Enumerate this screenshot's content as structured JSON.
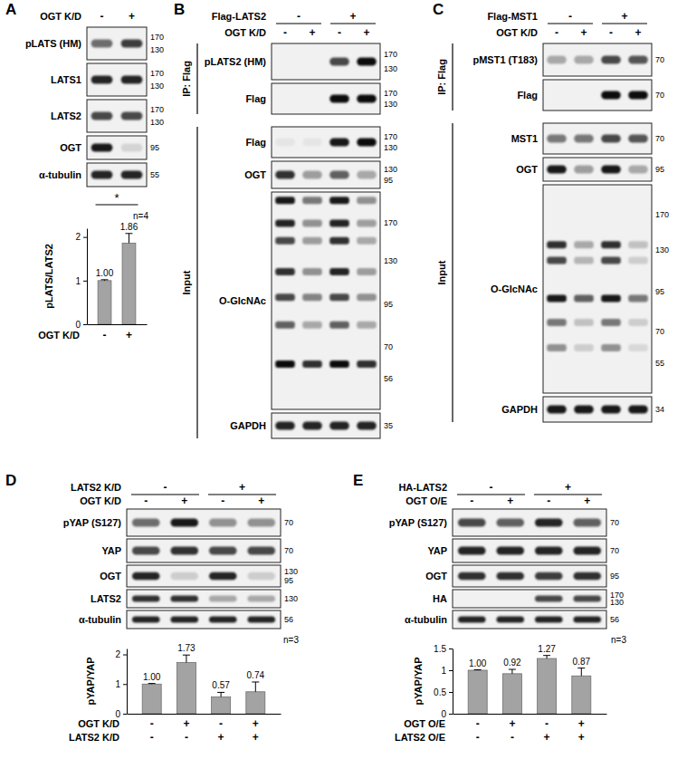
{
  "chart_data": [
    {
      "type": "bar",
      "categories": [
        "-",
        "+"
      ],
      "x_label": "OGT K/D",
      "values": [
        1,
        1.86
      ],
      "value_labels": [
        "1.00",
        "1.86"
      ],
      "errors": [
        0.02,
        0.22
      ],
      "y_label": "pLATS/LATS2",
      "ylim": [
        0,
        2.2
      ],
      "yticks": [
        0,
        1,
        2
      ],
      "color": "#a3a3a3",
      "data_labels": true,
      "significance": "*",
      "n_label": "n=4"
    },
    {
      "type": "bar",
      "categories": [
        "-",
        "+",
        "-",
        "+"
      ],
      "x_label": "OGT K/D",
      "categories_2": [
        "-",
        "-",
        "+",
        "+"
      ],
      "x_label_2": "LATS2 K/D",
      "values": [
        1,
        1.73,
        0.57,
        0.74
      ],
      "value_labels": [
        "1.00",
        "1.73",
        "0.57",
        "0.74"
      ],
      "errors": [
        0.02,
        0.25,
        0.15,
        0.33
      ],
      "y_label": "pYAP/YAP",
      "ylim": [
        0,
        2.2
      ],
      "yticks": [
        0,
        1,
        2
      ],
      "color": "#a3a3a3",
      "data_labels": true,
      "n_label": "n=3"
    },
    {
      "type": "bar",
      "categories": [
        "-",
        "+",
        "-",
        "+"
      ],
      "x_label": "OGT O/E",
      "categories_2": [
        "-",
        "-",
        "+",
        "+"
      ],
      "x_label_2": "LATS2 O/E",
      "values": [
        1,
        0.92,
        1.27,
        0.87
      ],
      "value_labels": [
        "1.00",
        "0.92",
        "1.27",
        "0.87"
      ],
      "errors": [
        0.01,
        0.1,
        0.07,
        0.18
      ],
      "y_label": "pYAP/YAP",
      "ylim": [
        0,
        1.5
      ],
      "yticks": [
        0,
        0.5,
        1,
        1.5
      ],
      "color": "#a3a3a3",
      "data_labels": true,
      "n_label": "n=3"
    }
  ],
  "blots": [
    {
      "panel": "A",
      "headers": [
        {
          "label": "OGT K/D",
          "signs": [
            "-",
            "+"
          ]
        }
      ],
      "rows": [
        {
          "name": "pLATS (HM)",
          "markers": [
            170,
            130
          ],
          "intensity": [
            0.55,
            0.75
          ]
        },
        {
          "name": "LATS1",
          "markers": [
            170,
            130
          ],
          "intensity": [
            0.85,
            0.85
          ]
        },
        {
          "name": "LATS2",
          "markers": [
            170,
            130
          ],
          "intensity": [
            0.7,
            0.7
          ]
        },
        {
          "name": "OGT",
          "markers": [
            95
          ],
          "intensity": [
            0.9,
            0.12
          ]
        },
        {
          "name": "α-tubulin",
          "markers": [
            55
          ],
          "intensity": [
            0.85,
            0.85
          ]
        }
      ]
    },
    {
      "panel": "B",
      "headers": [
        {
          "label": "Flag-LATS2",
          "signs": [
            "-",
            "+"
          ]
        },
        {
          "label": "OGT K/D",
          "signs": [
            "-",
            "+",
            "-",
            "+"
          ]
        }
      ],
      "groups": [
        {
          "label": "IP: Flag",
          "rows": [
            {
              "name": "pLATS2 (HM)",
              "markers": [
                170,
                130
              ],
              "intensity": [
                0,
                0,
                0.7,
                0.95
              ]
            },
            {
              "name": "Flag",
              "markers": [
                170,
                130
              ],
              "intensity": [
                0,
                0,
                0.95,
                0.95
              ]
            }
          ]
        },
        {
          "label": "Input",
          "rows": [
            {
              "name": "Flag",
              "markers": [
                170,
                130
              ],
              "intensity": [
                0.05,
                0.05,
                0.9,
                0.95
              ]
            },
            {
              "name": "OGT",
              "markers": [
                130,
                95
              ],
              "intensity": [
                0.8,
                0.35,
                0.6,
                0.3
              ]
            },
            {
              "name": "O-GlcNAc",
              "markers": [
                170,
                130,
                95,
                70,
                56
              ],
              "bands": [
                {
                  "kda": 200,
                  "intensity": [
                    0.9,
                    0.5,
                    0.9,
                    0.4
                  ]
                },
                {
                  "kda": 170,
                  "intensity": [
                    0.85,
                    0.4,
                    0.85,
                    0.35
                  ]
                },
                {
                  "kda": 150,
                  "intensity": [
                    0.7,
                    0.35,
                    0.8,
                    0.3
                  ]
                },
                {
                  "kda": 120,
                  "intensity": [
                    0.8,
                    0.4,
                    0.85,
                    0.35
                  ]
                },
                {
                  "kda": 100,
                  "intensity": [
                    0.7,
                    0.45,
                    0.7,
                    0.4
                  ]
                },
                {
                  "kda": 82,
                  "intensity": [
                    0.6,
                    0.3,
                    0.6,
                    0.3
                  ]
                },
                {
                  "kda": 62,
                  "intensity": [
                    0.95,
                    0.8,
                    0.95,
                    0.8
                  ]
                }
              ]
            },
            {
              "name": "GAPDH",
              "markers": [
                35
              ],
              "intensity": [
                0.85,
                0.85,
                0.85,
                0.85
              ]
            }
          ]
        }
      ]
    },
    {
      "panel": "C",
      "headers": [
        {
          "label": "Flag-MST1",
          "signs": [
            "-",
            "+"
          ]
        },
        {
          "label": "OGT K/D",
          "signs": [
            "-",
            "+",
            "-",
            "+"
          ]
        }
      ],
      "groups": [
        {
          "label": "IP: Flag",
          "rows": [
            {
              "name": "pMST1 (T183)",
              "markers": [
                70
              ],
              "intensity": [
                0.3,
                0.3,
                0.7,
                0.65
              ]
            },
            {
              "name": "Flag",
              "markers": [
                70
              ],
              "intensity": [
                0,
                0,
                0.95,
                0.95
              ]
            }
          ]
        },
        {
          "label": "Input",
          "rows": [
            {
              "name": "MST1",
              "markers": [
                70
              ],
              "intensity": [
                0.5,
                0.5,
                0.7,
                0.65
              ]
            },
            {
              "name": "OGT",
              "markers": [
                95
              ],
              "intensity": [
                0.9,
                0.35,
                0.9,
                0.3
              ]
            },
            {
              "name": "O-GlcNAc",
              "markers": [
                170,
                130,
                95,
                70,
                55
              ],
              "bands": [
                {
                  "kda": 135,
                  "intensity": [
                    0.8,
                    0.3,
                    0.8,
                    0.2
                  ]
                },
                {
                  "kda": 120,
                  "intensity": [
                    0.7,
                    0.25,
                    0.7,
                    0.15
                  ]
                },
                {
                  "kda": 90,
                  "intensity": [
                    0.9,
                    0.6,
                    0.9,
                    0.5
                  ]
                },
                {
                  "kda": 75,
                  "intensity": [
                    0.5,
                    0.2,
                    0.5,
                    0.15
                  ]
                },
                {
                  "kda": 62,
                  "intensity": [
                    0.4,
                    0.15,
                    0.4,
                    0.1
                  ]
                }
              ]
            },
            {
              "name": "GAPDH",
              "markers": [
                34
              ],
              "intensity": [
                0.9,
                0.9,
                0.9,
                0.9
              ]
            }
          ]
        }
      ]
    },
    {
      "panel": "D",
      "headers": [
        {
          "label": "LATS2 K/D",
          "signs": [
            "-",
            "+"
          ]
        },
        {
          "label": "OGT K/D",
          "signs": [
            "-",
            "+",
            "-",
            "+"
          ]
        }
      ],
      "rows": [
        {
          "name": "pYAP (S127)",
          "markers": [
            70
          ],
          "intensity": [
            0.55,
            0.9,
            0.4,
            0.4
          ]
        },
        {
          "name": "YAP",
          "markers": [
            70
          ],
          "intensity": [
            0.7,
            0.8,
            0.7,
            0.7
          ]
        },
        {
          "name": "OGT",
          "markers": [
            130,
            95
          ],
          "intensity": [
            0.85,
            0.15,
            0.85,
            0.15
          ]
        },
        {
          "name": "LATS2",
          "markers": [
            130
          ],
          "intensity": [
            0.8,
            0.8,
            0.3,
            0.3
          ]
        },
        {
          "name": "α-tubulin",
          "markers": [
            56
          ],
          "intensity": [
            0.85,
            0.85,
            0.85,
            0.85
          ]
        }
      ]
    },
    {
      "panel": "E",
      "headers": [
        {
          "label": "HA-LATS2",
          "signs": [
            "-",
            "+"
          ]
        },
        {
          "label": "OGT O/E",
          "signs": [
            "-",
            "+",
            "-",
            "+"
          ]
        }
      ],
      "rows": [
        {
          "name": "pYAP (S127)",
          "markers": [
            70
          ],
          "intensity": [
            0.7,
            0.6,
            0.85,
            0.6
          ]
        },
        {
          "name": "YAP",
          "markers": [
            70
          ],
          "intensity": [
            0.85,
            0.85,
            0.85,
            0.85
          ]
        },
        {
          "name": "OGT",
          "markers": [
            95
          ],
          "intensity": [
            0.8,
            0.8,
            0.75,
            0.8
          ]
        },
        {
          "name": "HA",
          "markers": [
            170,
            130
          ],
          "intensity": [
            0,
            0,
            0.7,
            0.7
          ]
        },
        {
          "name": "α-tubulin",
          "markers": [
            56
          ],
          "intensity": [
            0.85,
            0.85,
            0.85,
            0.85
          ]
        }
      ]
    }
  ]
}
